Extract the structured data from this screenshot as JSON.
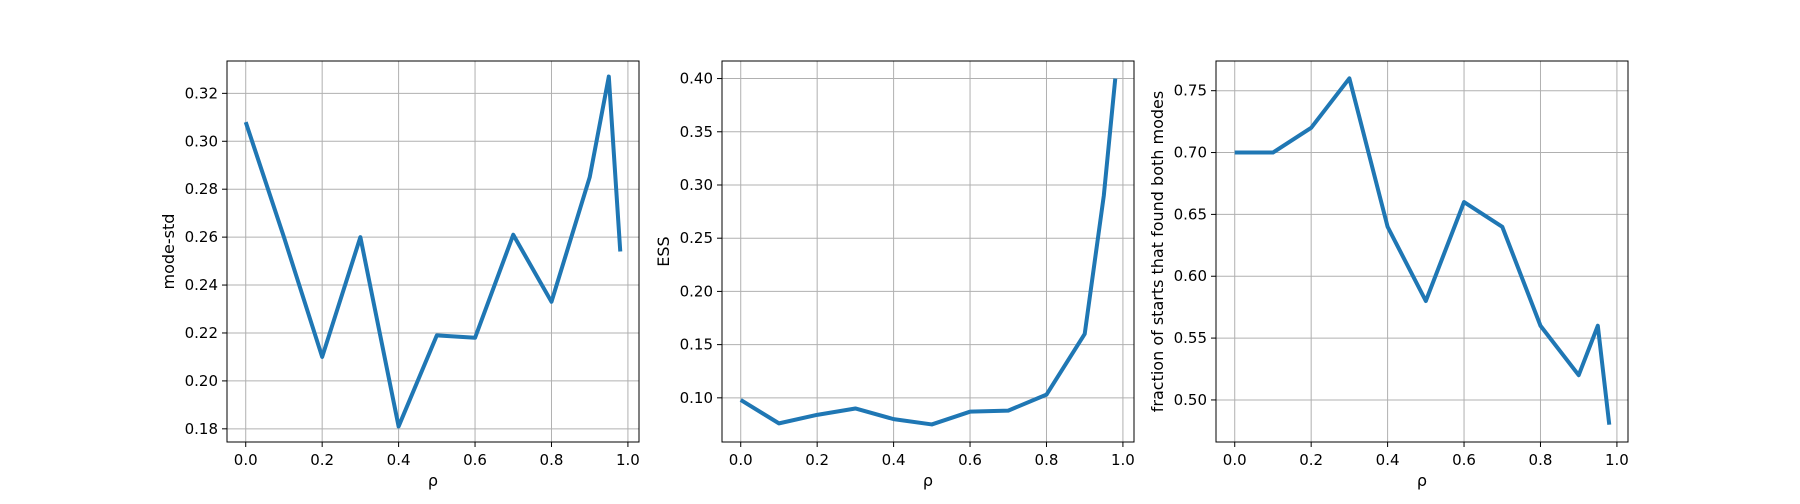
{
  "chart_data": [
    {
      "type": "line",
      "xlabel": "ρ",
      "ylabel": "mode-std",
      "xlim": [
        -0.049,
        1.029
      ],
      "ylim": [
        0.1745,
        0.3335
      ],
      "xticks": [
        0.0,
        0.2,
        0.4,
        0.6,
        0.8,
        1.0
      ],
      "xtick_labels": [
        "0.0",
        "0.2",
        "0.4",
        "0.6",
        "0.8",
        "1.0"
      ],
      "yticks": [
        0.18,
        0.2,
        0.22,
        0.24,
        0.26,
        0.28,
        0.3,
        0.32
      ],
      "ytick_labels": [
        "0.18",
        "0.20",
        "0.22",
        "0.24",
        "0.26",
        "0.28",
        "0.30",
        "0.32"
      ],
      "grid": true,
      "color": "#1f77b4",
      "series": [
        {
          "x": [
            0.0,
            0.1,
            0.2,
            0.3,
            0.4,
            0.5,
            0.6,
            0.7,
            0.8,
            0.9,
            0.95,
            0.98
          ],
          "y": [
            0.308,
            0.26,
            0.21,
            0.26,
            0.181,
            0.219,
            0.218,
            0.261,
            0.233,
            0.285,
            0.327,
            0.254
          ]
        }
      ]
    },
    {
      "type": "line",
      "xlabel": "ρ",
      "ylabel": "ESS",
      "xlim": [
        -0.049,
        1.029
      ],
      "ylim": [
        0.0585,
        0.4165
      ],
      "xticks": [
        0.0,
        0.2,
        0.4,
        0.6,
        0.8,
        1.0
      ],
      "xtick_labels": [
        "0.0",
        "0.2",
        "0.4",
        "0.6",
        "0.8",
        "1.0"
      ],
      "yticks": [
        0.1,
        0.15,
        0.2,
        0.25,
        0.3,
        0.35,
        0.4
      ],
      "ytick_labels": [
        "0.10",
        "0.15",
        "0.20",
        "0.25",
        "0.30",
        "0.35",
        "0.40"
      ],
      "grid": true,
      "color": "#1f77b4",
      "series": [
        {
          "x": [
            0.0,
            0.1,
            0.2,
            0.3,
            0.4,
            0.5,
            0.6,
            0.7,
            0.8,
            0.9,
            0.95,
            0.98
          ],
          "y": [
            0.098,
            0.076,
            0.084,
            0.09,
            0.08,
            0.075,
            0.087,
            0.088,
            0.103,
            0.16,
            0.29,
            0.4
          ]
        }
      ]
    },
    {
      "type": "line",
      "xlabel": "ρ",
      "ylabel": "fraction of starts that found both modes",
      "xlim": [
        -0.049,
        1.029
      ],
      "ylim": [
        0.466,
        0.774
      ],
      "xticks": [
        0.0,
        0.2,
        0.4,
        0.6,
        0.8,
        1.0
      ],
      "xtick_labels": [
        "0.0",
        "0.2",
        "0.4",
        "0.6",
        "0.8",
        "1.0"
      ],
      "yticks": [
        0.5,
        0.55,
        0.6,
        0.65,
        0.7,
        0.75
      ],
      "ytick_labels": [
        "0.50",
        "0.55",
        "0.60",
        "0.65",
        "0.70",
        "0.75"
      ],
      "grid": true,
      "color": "#1f77b4",
      "series": [
        {
          "x": [
            0.0,
            0.1,
            0.2,
            0.3,
            0.4,
            0.5,
            0.6,
            0.7,
            0.8,
            0.9,
            0.95,
            0.98
          ],
          "y": [
            0.7,
            0.7,
            0.72,
            0.76,
            0.64,
            0.58,
            0.66,
            0.64,
            0.56,
            0.52,
            0.56,
            0.48
          ]
        }
      ]
    }
  ]
}
